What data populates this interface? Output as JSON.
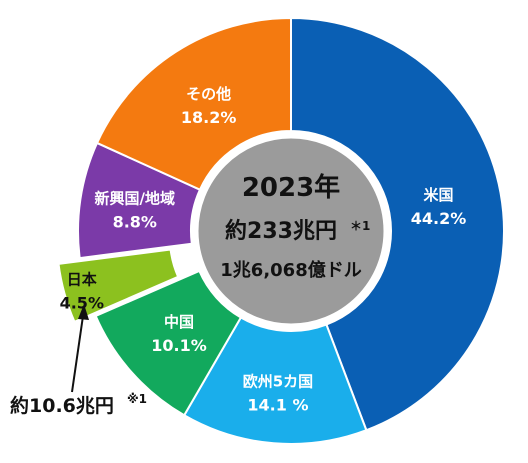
{
  "chart_data": {
    "type": "pie",
    "style": "donut",
    "start": "12 o'clock, clockwise",
    "slices": [
      {
        "label": "米国",
        "value": 44.2,
        "value_label": "44.2%",
        "color": "#0a5fb4"
      },
      {
        "label": "欧州5カ国",
        "value": 14.1,
        "value_label": "14.1 %",
        "color": "#1aaeeb"
      },
      {
        "label": "中国",
        "value": 10.1,
        "value_label": "10.1%",
        "color": "#12a95d"
      },
      {
        "label": "日本",
        "value": 4.5,
        "value_label": "4.5%",
        "color": "#8cc11f",
        "exploded": true
      },
      {
        "label": "新興国/地域",
        "value": 8.8,
        "value_label": "8.8%",
        "color": "#7b3aa8"
      },
      {
        "label": "その他",
        "value": 18.2,
        "value_label": "18.2%",
        "color": "#f47a10"
      }
    ],
    "center": {
      "year": "2023年",
      "yen_text": "約233兆円",
      "yen_mark": "＊1",
      "usd_text": "1兆6,068億ドル",
      "fill_color": "#9b9b9b"
    },
    "annotation": {
      "text": "約10.6兆円",
      "mark": "※1",
      "points_to": "日本"
    }
  }
}
